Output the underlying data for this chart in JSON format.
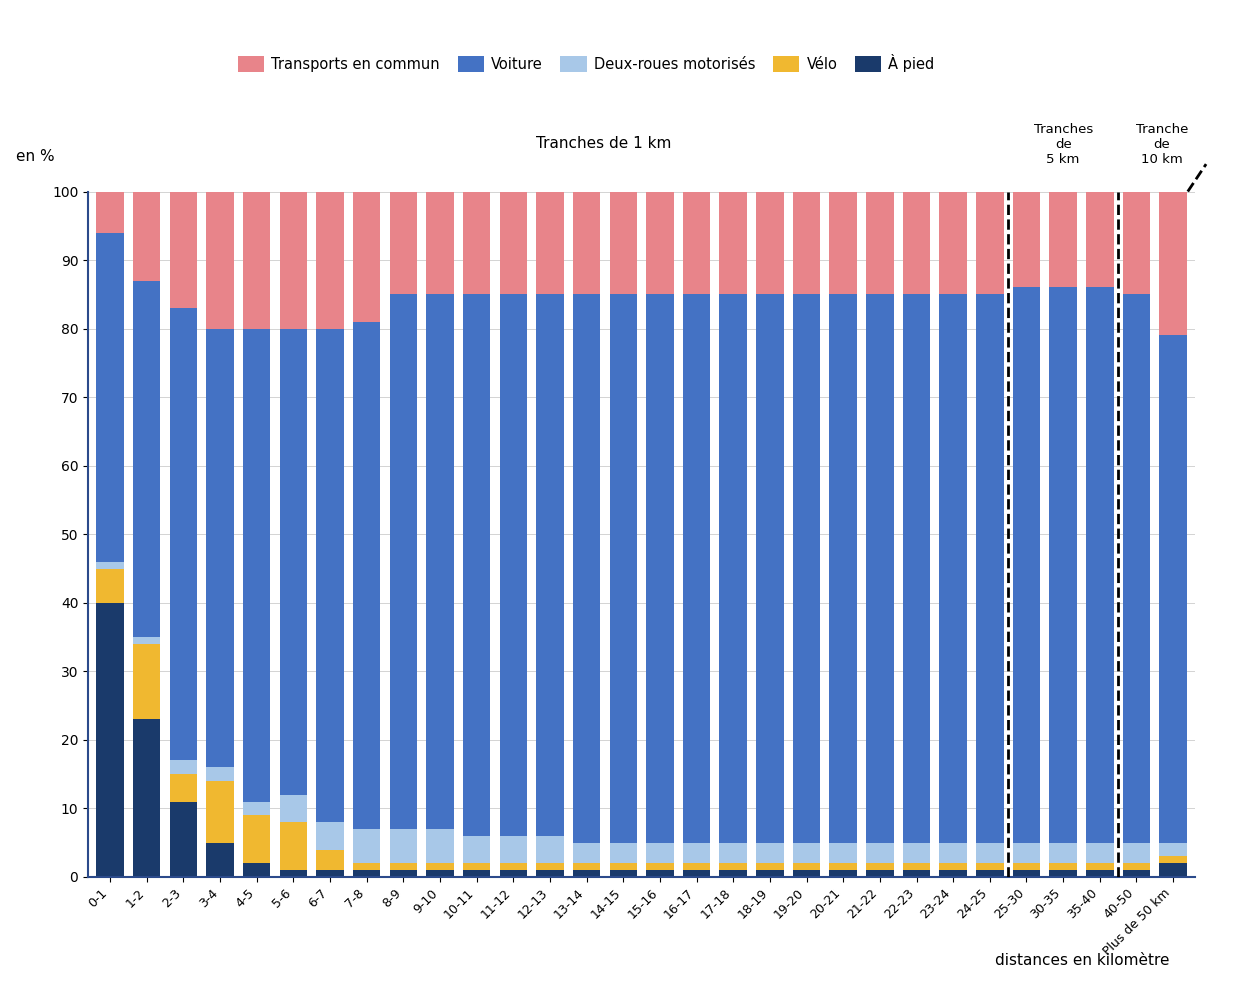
{
  "categories": [
    "0-1",
    "1-2",
    "2-3",
    "3-4",
    "4-5",
    "5-6",
    "6-7",
    "7-8",
    "8-9",
    "9-10",
    "10-11",
    "11-12",
    "12-13",
    "13-14",
    "14-15",
    "15-16",
    "16-17",
    "17-18",
    "18-19",
    "19-20",
    "20-21",
    "21-22",
    "22-23",
    "23-24",
    "24-25",
    "25-30",
    "30-35",
    "35-40",
    "40-50",
    "Plus de 50 km"
  ],
  "a_pied": [
    40,
    23,
    11,
    5,
    2,
    1,
    1,
    1,
    1,
    1,
    1,
    1,
    1,
    1,
    1,
    1,
    1,
    1,
    1,
    1,
    1,
    1,
    1,
    1,
    1,
    1,
    1,
    1,
    1,
    2
  ],
  "velo": [
    5,
    11,
    4,
    9,
    7,
    7,
    3,
    1,
    1,
    1,
    1,
    1,
    1,
    1,
    1,
    1,
    1,
    1,
    1,
    1,
    1,
    1,
    1,
    1,
    1,
    1,
    1,
    1,
    1,
    1
  ],
  "deux_roues": [
    1,
    1,
    2,
    2,
    2,
    4,
    4,
    5,
    5,
    5,
    4,
    4,
    4,
    3,
    3,
    3,
    3,
    3,
    3,
    3,
    3,
    3,
    3,
    3,
    3,
    3,
    3,
    3,
    3,
    2
  ],
  "voiture": [
    48,
    52,
    66,
    64,
    69,
    68,
    72,
    74,
    78,
    78,
    79,
    79,
    79,
    80,
    80,
    80,
    80,
    80,
    80,
    80,
    80,
    80,
    80,
    80,
    80,
    81,
    81,
    81,
    80,
    74
  ],
  "transport_commun": [
    6,
    13,
    17,
    20,
    20,
    20,
    20,
    19,
    15,
    15,
    15,
    15,
    15,
    15,
    15,
    15,
    15,
    15,
    15,
    15,
    15,
    15,
    15,
    15,
    15,
    14,
    14,
    14,
    15,
    21
  ],
  "color_transport": "#e8848a",
  "color_voiture": "#4472c4",
  "color_deux_roues": "#a8c8e8",
  "color_velo": "#f0b830",
  "color_a_pied": "#1a3a6b",
  "ylabel": "en %",
  "xlabel": "distances en kilomètre",
  "title_tranches1": "Tranches de 1 km",
  "title_tranches5": "Tranches\nde\n5 km",
  "title_tranche10": "Tranche\nde\n10 km",
  "legend_transport": "Transports en commun",
  "legend_voiture": "Voiture",
  "legend_deux_roues": "Deux-roues motorisés",
  "legend_velo": "Vélo",
  "legend_a_pied": "À pied"
}
